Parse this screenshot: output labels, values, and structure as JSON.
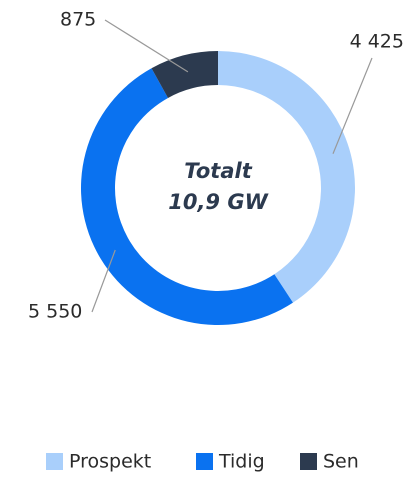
{
  "chart_data": {
    "type": "donut",
    "categories": [
      "Prospekt",
      "Tidig",
      "Sen"
    ],
    "values": [
      4425,
      5550,
      875
    ],
    "value_labels": [
      "4 425",
      "5 550",
      "875"
    ],
    "colors": [
      "#a9cffb",
      "#0a72f0",
      "#2c3a4f"
    ],
    "annotations": [
      "Totalt",
      "10,9 GW"
    ],
    "legend": "bottom"
  }
}
